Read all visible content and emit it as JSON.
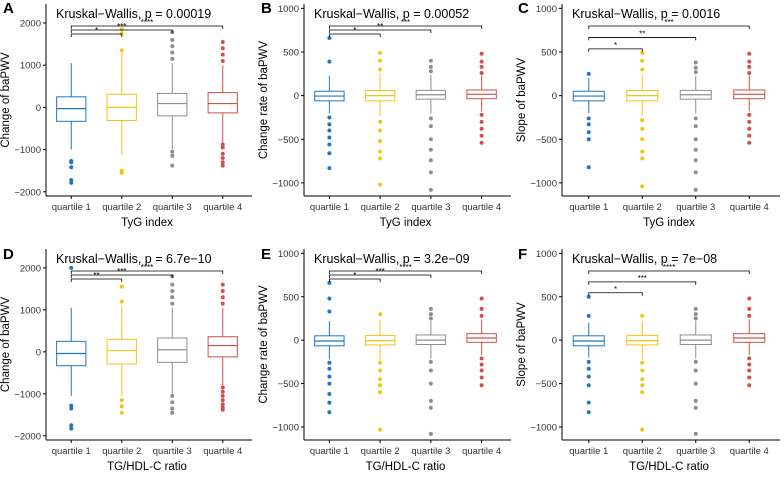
{
  "colors": {
    "q1": "#1f77c4",
    "q2": "#f0c419",
    "q3": "#8e8e8e",
    "q4": "#d0504c"
  },
  "chart_data": [
    {
      "type": "boxplot",
      "panel_label": "A",
      "title": "Kruskal−Wallis, p = 0.00019",
      "xlabel": "TyG index",
      "ylabel": "Change of baPWV",
      "ylim": [
        -2100,
        2450
      ],
      "yticks": [
        -2000,
        -1000,
        0,
        1000,
        2000
      ],
      "categories": [
        "quartile 1",
        "quartile 2",
        "quartile 3",
        "quartile 4"
      ],
      "boxes": [
        {
          "q1": -330,
          "median": -30,
          "q3": 250,
          "lower": -1000,
          "upper": 1050,
          "outliers": [
            -1270,
            -1300,
            -1420,
            -1720,
            -1790
          ]
        },
        {
          "q1": -310,
          "median": 0,
          "q3": 310,
          "lower": -1120,
          "upper": 1300,
          "outliers": [
            -1500,
            -1550,
            1350,
            1750,
            1850
          ]
        },
        {
          "q1": -200,
          "median": 90,
          "q3": 330,
          "lower": -1000,
          "upper": 1050,
          "outliers": [
            -1050,
            -1150,
            -1380,
            1150,
            1300,
            1450,
            1600,
            1780
          ]
        },
        {
          "q1": -130,
          "median": 90,
          "q3": 350,
          "lower": -850,
          "upper": 1000,
          "outliers": [
            -880,
            -950,
            -1100,
            -1200,
            -1300,
            -1380,
            1100,
            1250,
            1400,
            1550
          ]
        }
      ],
      "brackets": [
        {
          "from": 1,
          "to": 2,
          "label": "*"
        },
        {
          "from": 1,
          "to": 3,
          "label": "***"
        },
        {
          "from": 1,
          "to": 4,
          "label": "****"
        }
      ]
    },
    {
      "type": "boxplot",
      "panel_label": "B",
      "title": "Kruskal−Wallis, p = 0.00052",
      "xlabel": "TyG index",
      "ylabel": "Change rate of baPWV",
      "ylim": [
        -1150,
        1050
      ],
      "yticks": [
        -1000,
        -500,
        0,
        500,
        1000
      ],
      "categories": [
        "quartile 1",
        "quartile 2",
        "quartile 3",
        "quartile 4"
      ],
      "boxes": [
        {
          "q1": -60,
          "median": -5,
          "q3": 50,
          "lower": -200,
          "upper": 230,
          "outliers": [
            -250,
            -330,
            -400,
            -480,
            -560,
            -660,
            -830,
            390,
            660
          ]
        },
        {
          "q1": -60,
          "median": 0,
          "q3": 60,
          "lower": -230,
          "upper": 260,
          "outliers": [
            -300,
            -400,
            -520,
            -640,
            -720,
            -1020,
            300,
            400,
            490
          ]
        },
        {
          "q1": -40,
          "median": 10,
          "q3": 60,
          "lower": -200,
          "upper": 240,
          "outliers": [
            -260,
            -350,
            -500,
            -620,
            -740,
            -880,
            -1080,
            280,
            330,
            400
          ]
        },
        {
          "q1": -35,
          "median": 15,
          "q3": 65,
          "lower": -180,
          "upper": 230,
          "outliers": [
            -220,
            -300,
            -380,
            -460,
            -540,
            260,
            330,
            390,
            480
          ]
        }
      ],
      "brackets": [
        {
          "from": 1,
          "to": 2,
          "label": "*"
        },
        {
          "from": 1,
          "to": 3,
          "label": "**"
        },
        {
          "from": 1,
          "to": 4,
          "label": "***"
        }
      ]
    },
    {
      "type": "boxplot",
      "panel_label": "C",
      "title": "Kruskal−Wallis, p = 0.0016",
      "xlabel": "TyG index",
      "ylabel": "Slope of baPWV",
      "ylim": [
        -1150,
        1050
      ],
      "yticks": [
        -1000,
        -500,
        0,
        500,
        1000
      ],
      "categories": [
        "quartile 1",
        "quartile 2",
        "quartile 3",
        "quartile 4"
      ],
      "boxes": [
        {
          "q1": -60,
          "median": -5,
          "q3": 50,
          "lower": -200,
          "upper": 200,
          "outliers": [
            -260,
            -330,
            -420,
            -500,
            -820,
            250
          ]
        },
        {
          "q1": -60,
          "median": 0,
          "q3": 60,
          "lower": -230,
          "upper": 230,
          "outliers": [
            -280,
            -380,
            -500,
            -640,
            -720,
            -1040,
            300,
            400,
            490
          ]
        },
        {
          "q1": -40,
          "median": 10,
          "q3": 60,
          "lower": -200,
          "upper": 230,
          "outliers": [
            -260,
            -350,
            -500,
            -620,
            -740,
            -880,
            -1080,
            270,
            320,
            380
          ]
        },
        {
          "q1": -35,
          "median": 15,
          "q3": 65,
          "lower": -180,
          "upper": 230,
          "outliers": [
            -220,
            -300,
            -380,
            -460,
            -540,
            260,
            330,
            390,
            480
          ]
        }
      ],
      "brackets": [
        {
          "from": 1,
          "to": 2,
          "label": "*"
        },
        {
          "from": 1,
          "to": 3,
          "label": "**"
        },
        {
          "from": 1,
          "to": 4,
          "label": "***"
        }
      ]
    },
    {
      "type": "boxplot",
      "panel_label": "D",
      "title": "Kruskal−Wallis, p = 6.7e−10",
      "xlabel": "TG/HDL-C ratio",
      "ylabel": "Change of baPWV",
      "ylim": [
        -2100,
        2450
      ],
      "yticks": [
        -2000,
        -1000,
        0,
        1000,
        2000
      ],
      "categories": [
        "quartile 1",
        "quartile 2",
        "quartile 3",
        "quartile 4"
      ],
      "boxes": [
        {
          "q1": -330,
          "median": -40,
          "q3": 250,
          "lower": -1050,
          "upper": 1050,
          "outliers": [
            -1280,
            -1350,
            -1750,
            -1830,
            2000
          ]
        },
        {
          "q1": -290,
          "median": 30,
          "q3": 300,
          "lower": -1050,
          "upper": 1100,
          "outliers": [
            -1150,
            -1300,
            -1450,
            1200,
            1550
          ]
        },
        {
          "q1": -250,
          "median": 50,
          "q3": 330,
          "lower": -1000,
          "upper": 1050,
          "outliers": [
            -1050,
            -1200,
            -1350,
            -1450,
            1150,
            1300,
            1450,
            1600,
            1800
          ]
        },
        {
          "q1": -120,
          "median": 150,
          "q3": 360,
          "lower": -800,
          "upper": 1050,
          "outliers": [
            -850,
            -950,
            -1050,
            -1150,
            -1250,
            -1330,
            -1380,
            1150,
            1300,
            1450,
            1600
          ]
        }
      ],
      "brackets": [
        {
          "from": 1,
          "to": 2,
          "label": "**"
        },
        {
          "from": 1,
          "to": 3,
          "label": "***"
        },
        {
          "from": 1,
          "to": 4,
          "label": "****"
        }
      ]
    },
    {
      "type": "boxplot",
      "panel_label": "E",
      "title": "Kruskal−Wallis, p = 3.2e−09",
      "xlabel": "TG/HDL-C ratio",
      "ylabel": "Change rate of baPWV",
      "ylim": [
        -1150,
        1050
      ],
      "yticks": [
        -1000,
        -500,
        0,
        500,
        1000
      ],
      "categories": [
        "quartile 1",
        "quartile 2",
        "quartile 3",
        "quartile 4"
      ],
      "boxes": [
        {
          "q1": -65,
          "median": -10,
          "q3": 50,
          "lower": -220,
          "upper": 220,
          "outliers": [
            -260,
            -330,
            -420,
            -500,
            -620,
            -720,
            -830,
            330,
            480,
            660
          ]
        },
        {
          "q1": -55,
          "median": -5,
          "q3": 55,
          "lower": -230,
          "upper": 230,
          "outliers": [
            -260,
            -350,
            -450,
            -520,
            -600,
            -1030,
            300
          ]
        },
        {
          "q1": -50,
          "median": 0,
          "q3": 60,
          "lower": -210,
          "upper": 220,
          "outliers": [
            -250,
            -350,
            -500,
            -700,
            -780,
            -1080,
            250,
            300,
            360
          ]
        },
        {
          "q1": -25,
          "median": 25,
          "q3": 75,
          "lower": -170,
          "upper": 240,
          "outliers": [
            -210,
            -280,
            -350,
            -430,
            -520,
            280,
            360,
            480
          ]
        }
      ],
      "brackets": [
        {
          "from": 1,
          "to": 2,
          "label": "*"
        },
        {
          "from": 1,
          "to": 3,
          "label": "***"
        },
        {
          "from": 1,
          "to": 4,
          "label": "****"
        }
      ]
    },
    {
      "type": "boxplot",
      "panel_label": "F",
      "title": "Kruskal−Wallis, p = 7e−08",
      "xlabel": "TG/HDL-C ratio",
      "ylabel": "Slope of baPWV",
      "ylim": [
        -1150,
        1050
      ],
      "yticks": [
        -1000,
        -500,
        0,
        500,
        1000
      ],
      "categories": [
        "quartile 1",
        "quartile 2",
        "quartile 3",
        "quartile 4"
      ],
      "boxes": [
        {
          "q1": -65,
          "median": -10,
          "q3": 50,
          "lower": -200,
          "upper": 200,
          "outliers": [
            -250,
            -330,
            -420,
            -520,
            -720,
            -830,
            280,
            500
          ]
        },
        {
          "q1": -55,
          "median": -5,
          "q3": 55,
          "lower": -220,
          "upper": 220,
          "outliers": [
            -260,
            -350,
            -450,
            -520,
            -600,
            -1030,
            280
          ]
        },
        {
          "q1": -50,
          "median": 0,
          "q3": 60,
          "lower": -210,
          "upper": 220,
          "outliers": [
            -250,
            -350,
            -500,
            -700,
            -780,
            -1080,
            250,
            300,
            360
          ]
        },
        {
          "q1": -25,
          "median": 25,
          "q3": 75,
          "lower": -170,
          "upper": 240,
          "outliers": [
            -210,
            -280,
            -350,
            -430,
            -520,
            280,
            360,
            480
          ]
        }
      ],
      "brackets": [
        {
          "from": 1,
          "to": 2,
          "label": "*"
        },
        {
          "from": 1,
          "to": 3,
          "label": "***"
        },
        {
          "from": 1,
          "to": 4,
          "label": "****"
        }
      ]
    }
  ]
}
